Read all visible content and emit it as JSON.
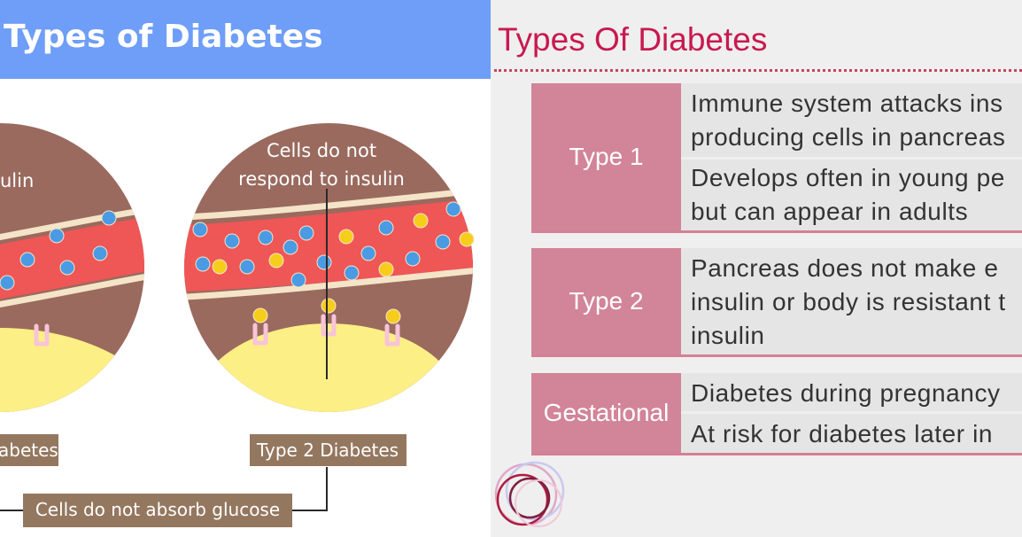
{
  "left": {
    "title": "Types of Diabetes",
    "label_type1_partial": "ulin",
    "label_type2_line1": "Cells do not",
    "label_type2_line2": "respond to insulin",
    "tag_type1_partial": "abetes",
    "tag_type2": "Type 2 Diabetes",
    "tag_common": "Cells do not absorb glucose",
    "colors": {
      "header": "#6e9ef7",
      "tissue": "#9a6a5e",
      "vessel": "#ef5656",
      "cell": "#fcef86",
      "glucose": "#f7cd1c",
      "insulin": "#4a9be3",
      "tag": "#94775f"
    }
  },
  "right": {
    "title": "Types Of Diabetes",
    "rows": [
      {
        "label": "Type 1",
        "desc": [
          [
            "Immune system attacks ins",
            "producing cells in pancreas"
          ],
          [
            "Develops often in young pe",
            "but can appear in adults"
          ]
        ]
      },
      {
        "label": "Type 2",
        "desc": [
          [
            "Pancreas does not make e",
            "insulin or body is resistant t",
            "insulin"
          ]
        ]
      },
      {
        "label": "Gestational",
        "desc": [
          [
            "Diabetes during pregnancy"
          ],
          [
            "At risk for diabetes later in"
          ]
        ]
      }
    ],
    "colors": {
      "title": "#c8194f",
      "label_bg": "#d28498",
      "row_bg": "#e5e5e5",
      "rule": "#c04860"
    }
  }
}
